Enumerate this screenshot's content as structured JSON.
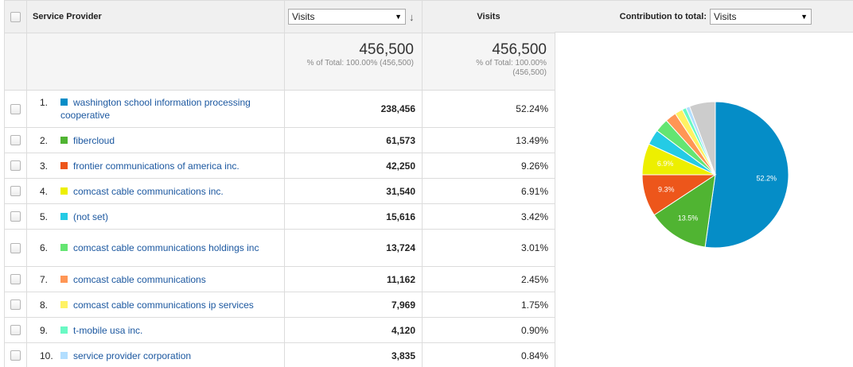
{
  "header": {
    "provider_label": "Service Provider",
    "metric_select": "Visits",
    "visits_label": "Visits",
    "contribution_label": "Contribution to total:",
    "contribution_select": "Visits"
  },
  "summary": {
    "col1_value": "456,500",
    "col1_sub": "% of Total: 100.00% (456,500)",
    "col2_value": "456,500",
    "col2_sub_line1": "% of Total: 100.00%",
    "col2_sub_line2": "(456,500)"
  },
  "rows": [
    {
      "rank": "1.",
      "name": "washington school information processing cooperative",
      "visits": "238,456",
      "pct": "52.24%",
      "color": "#058dc7"
    },
    {
      "rank": "2.",
      "name": "fibercloud",
      "visits": "61,573",
      "pct": "13.49%",
      "color": "#50b432"
    },
    {
      "rank": "3.",
      "name": "frontier communications of america inc.",
      "visits": "42,250",
      "pct": "9.26%",
      "color": "#ed561b"
    },
    {
      "rank": "4.",
      "name": "comcast cable communications inc.",
      "visits": "31,540",
      "pct": "6.91%",
      "color": "#edef00"
    },
    {
      "rank": "5.",
      "name": "(not set)",
      "visits": "15,616",
      "pct": "3.42%",
      "color": "#24cbe5"
    },
    {
      "rank": "6.",
      "name": "comcast cable communications holdings inc",
      "visits": "13,724",
      "pct": "3.01%",
      "color": "#64e572"
    },
    {
      "rank": "7.",
      "name": "comcast cable communications",
      "visits": "11,162",
      "pct": "2.45%",
      "color": "#ff9655"
    },
    {
      "rank": "8.",
      "name": "comcast cable communications ip services",
      "visits": "7,969",
      "pct": "1.75%",
      "color": "#fff263"
    },
    {
      "rank": "9.",
      "name": "t-mobile usa inc.",
      "visits": "4,120",
      "pct": "0.90%",
      "color": "#6af9c4"
    },
    {
      "rank": "10.",
      "name": "service provider corporation",
      "visits": "3,835",
      "pct": "0.84%",
      "color": "#b2deff"
    }
  ],
  "chart_data": {
    "type": "pie",
    "labels": [
      "washington school information processing cooperative",
      "fibercloud",
      "frontier communications of america inc.",
      "comcast cable communications inc.",
      "(not set)",
      "comcast cable communications holdings inc",
      "comcast cable communications",
      "comcast cable communications ip services",
      "t-mobile usa inc.",
      "service provider corporation",
      ""
    ],
    "values": [
      52.24,
      13.49,
      9.26,
      6.91,
      3.42,
      3.01,
      2.45,
      1.75,
      0.9,
      0.84,
      5.73
    ],
    "colors": [
      "#058dc7",
      "#50b432",
      "#ed561b",
      "#edef00",
      "#24cbe5",
      "#64e572",
      "#ff9655",
      "#fff263",
      "#6af9c4",
      "#b2deff",
      "#cccccc"
    ],
    "slice_labels": [
      "52.2%",
      "13.5%",
      "9.3%",
      "6.9%",
      "",
      "",
      "",
      "",
      "",
      "",
      ""
    ]
  }
}
